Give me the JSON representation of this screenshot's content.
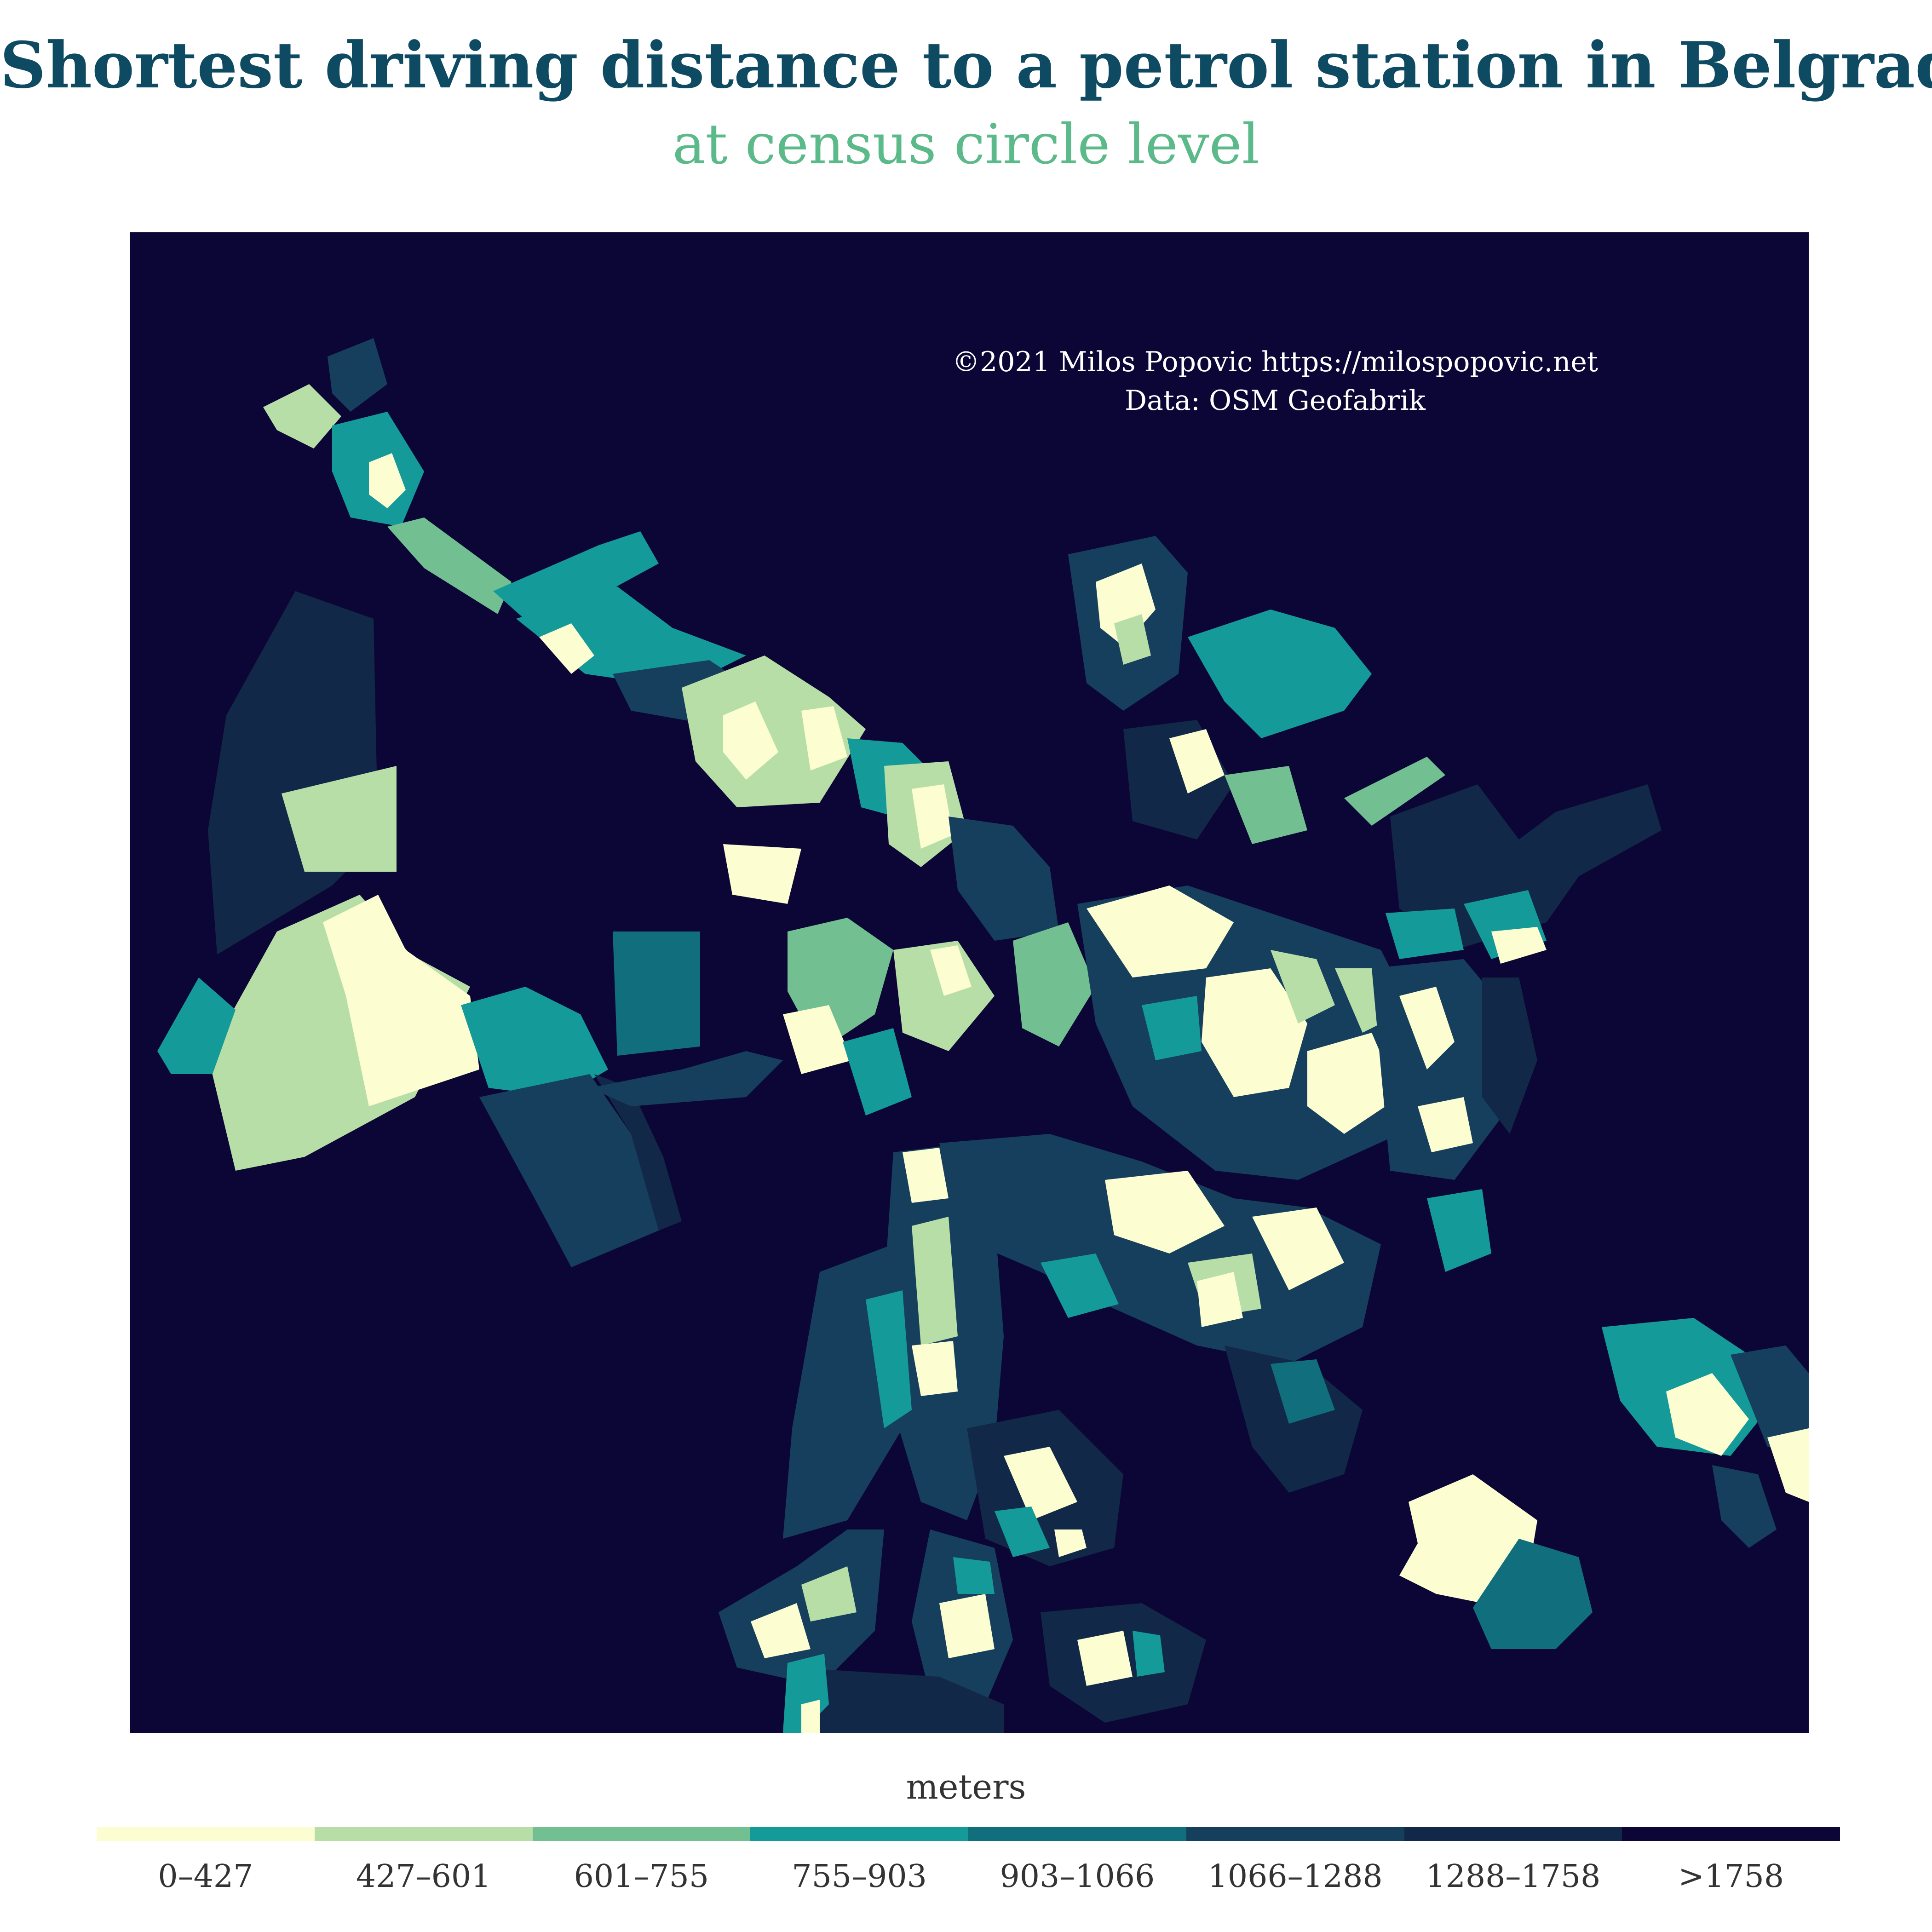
{
  "header": {
    "title": "Shortest driving distance to a petrol station in Belgrade",
    "subtitle": "at census circle level"
  },
  "credit": {
    "line1": "©2021 Milos Popovic https://milospopovic.net",
    "line2": "Data: OSM Geofabrik"
  },
  "legend": {
    "title": "meters",
    "classes": [
      {
        "label": "0–427",
        "color": "#fcfdd1"
      },
      {
        "label": "427–601",
        "color": "#b8dea8"
      },
      {
        "label": "601–755",
        "color": "#72bf92"
      },
      {
        "label": "755–903",
        "color": "#149a98"
      },
      {
        "label": "903–1066",
        "color": "#116e7d"
      },
      {
        "label": "1066–1288",
        "color": "#163f5d"
      },
      {
        "label": "1288–1758",
        "color": "#122848"
      },
      {
        "label": ">1758",
        "color": "#0c0636"
      }
    ]
  },
  "map": {
    "background": "#0c0636"
  }
}
